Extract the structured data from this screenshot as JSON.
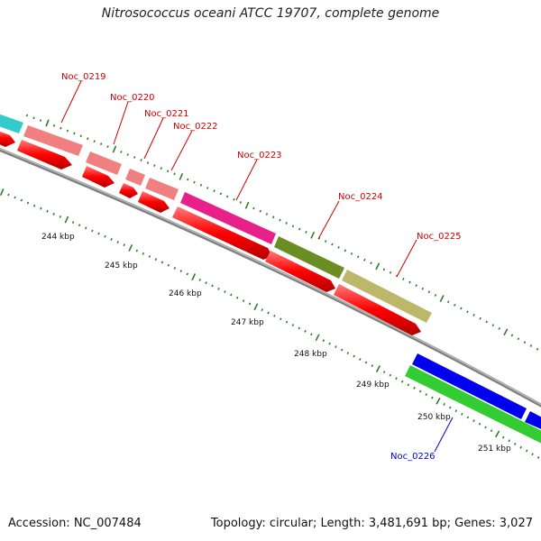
{
  "title": "Nitrosococcus oceani ATCC 19707, complete genome",
  "footer": {
    "accession": "Accession: NC_007484",
    "summary": "Topology: circular; Length: 3,481,691 bp; Genes: 3,027"
  },
  "colors": {
    "backbone": "#808080",
    "tick_minor": "#2e7d2e",
    "tick_major": "#2e7d2e",
    "cds": "#ff0000",
    "label_red": "#cc0000",
    "label_blue": "#0000cc",
    "cyan": "#33cccc",
    "pink": "#f08080",
    "magenta": "#e8208a",
    "olive": "#6b8e23",
    "khaki": "#bdb76b",
    "blue": "#0000ee",
    "green": "#33cc33"
  },
  "kbp_labels": [
    "244 kbp",
    "245 kbp",
    "246 kbp",
    "247 kbp",
    "248 kbp",
    "249 kbp",
    "250 kbp",
    "251 kbp"
  ],
  "gene_labels": [
    {
      "name": "Noc_0219",
      "color": "red"
    },
    {
      "name": "Noc_0220",
      "color": "red"
    },
    {
      "name": "Noc_0221",
      "color": "red"
    },
    {
      "name": "Noc_0222",
      "color": "red"
    },
    {
      "name": "Noc_0223",
      "color": "red"
    },
    {
      "name": "Noc_0224",
      "color": "red"
    },
    {
      "name": "Noc_0225",
      "color": "red"
    },
    {
      "name": "Noc_0226",
      "color": "blue"
    }
  ]
}
